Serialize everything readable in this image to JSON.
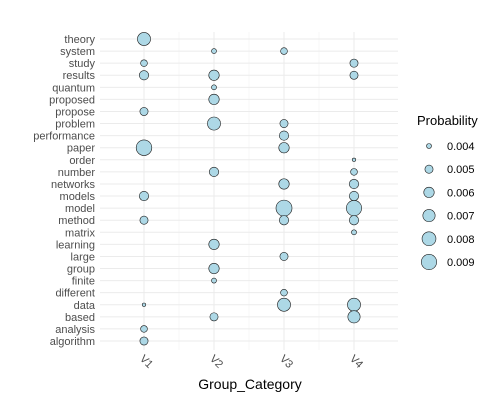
{
  "chart_data": {
    "type": "scatter",
    "xlabel": "Group_Category",
    "ylabel": "",
    "x_categories": [
      "V1",
      "V2",
      "V3",
      "V4"
    ],
    "y_categories": [
      "algorithm",
      "analysis",
      "based",
      "data",
      "different",
      "finite",
      "group",
      "large",
      "learning",
      "matrix",
      "method",
      "model",
      "models",
      "networks",
      "number",
      "order",
      "paper",
      "performance",
      "problem",
      "propose",
      "proposed",
      "quantum",
      "results",
      "study",
      "system",
      "theory"
    ],
    "size_variable": "Probability",
    "size_range": [
      0.0035,
      0.0095
    ],
    "grid": true,
    "legend_placement": "right",
    "legend": {
      "title": "Probability",
      "entries": [
        0.004,
        0.005,
        0.006,
        0.007,
        0.008,
        0.009
      ],
      "labels": [
        "0.004",
        "0.005",
        "0.006",
        "0.007",
        "0.008",
        "0.009"
      ]
    },
    "marker_fill": "#add8e6",
    "marker_stroke": "#1a1a1a",
    "points": [
      {
        "x": "V1",
        "y": "theory",
        "value": 0.0075
      },
      {
        "x": "V1",
        "y": "study",
        "value": 0.0045
      },
      {
        "x": "V1",
        "y": "results",
        "value": 0.0055
      },
      {
        "x": "V1",
        "y": "propose",
        "value": 0.005
      },
      {
        "x": "V1",
        "y": "paper",
        "value": 0.0092
      },
      {
        "x": "V1",
        "y": "models",
        "value": 0.0055
      },
      {
        "x": "V1",
        "y": "method",
        "value": 0.005
      },
      {
        "x": "V1",
        "y": "data",
        "value": 0.0037
      },
      {
        "x": "V1",
        "y": "analysis",
        "value": 0.0045
      },
      {
        "x": "V1",
        "y": "algorithm",
        "value": 0.005
      },
      {
        "x": "V2",
        "y": "system",
        "value": 0.004
      },
      {
        "x": "V2",
        "y": "results",
        "value": 0.006
      },
      {
        "x": "V2",
        "y": "quantum",
        "value": 0.004
      },
      {
        "x": "V2",
        "y": "proposed",
        "value": 0.006
      },
      {
        "x": "V2",
        "y": "problem",
        "value": 0.0075
      },
      {
        "x": "V2",
        "y": "number",
        "value": 0.0055
      },
      {
        "x": "V2",
        "y": "learning",
        "value": 0.006
      },
      {
        "x": "V2",
        "y": "group",
        "value": 0.006
      },
      {
        "x": "V2",
        "y": "finite",
        "value": 0.004
      },
      {
        "x": "V2",
        "y": "based",
        "value": 0.005
      },
      {
        "x": "V3",
        "y": "system",
        "value": 0.0045
      },
      {
        "x": "V3",
        "y": "problem",
        "value": 0.005
      },
      {
        "x": "V3",
        "y": "performance",
        "value": 0.0055
      },
      {
        "x": "V3",
        "y": "paper",
        "value": 0.006
      },
      {
        "x": "V3",
        "y": "networks",
        "value": 0.006
      },
      {
        "x": "V3",
        "y": "model",
        "value": 0.0095
      },
      {
        "x": "V3",
        "y": "method",
        "value": 0.0055
      },
      {
        "x": "V3",
        "y": "large",
        "value": 0.005
      },
      {
        "x": "V3",
        "y": "different",
        "value": 0.0045
      },
      {
        "x": "V3",
        "y": "data",
        "value": 0.0075
      },
      {
        "x": "V4",
        "y": "study",
        "value": 0.005
      },
      {
        "x": "V4",
        "y": "results",
        "value": 0.005
      },
      {
        "x": "V4",
        "y": "order",
        "value": 0.0037
      },
      {
        "x": "V4",
        "y": "number",
        "value": 0.0045
      },
      {
        "x": "V4",
        "y": "networks",
        "value": 0.0055
      },
      {
        "x": "V4",
        "y": "models",
        "value": 0.0055
      },
      {
        "x": "V4",
        "y": "model",
        "value": 0.009
      },
      {
        "x": "V4",
        "y": "method",
        "value": 0.0055
      },
      {
        "x": "V4",
        "y": "matrix",
        "value": 0.004
      },
      {
        "x": "V4",
        "y": "data",
        "value": 0.0075
      },
      {
        "x": "V4",
        "y": "based",
        "value": 0.007
      }
    ]
  }
}
